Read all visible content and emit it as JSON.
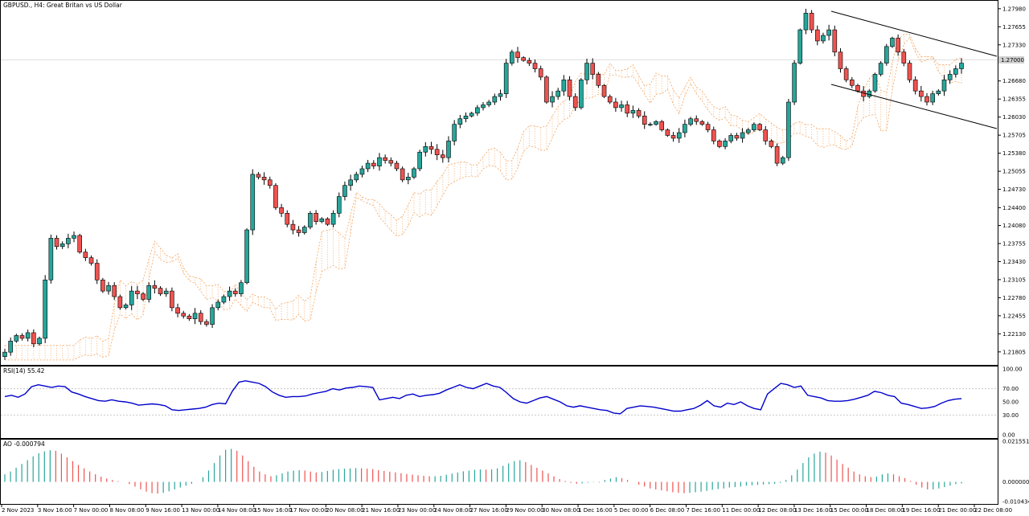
{
  "chart_title": "GBPUSD., H4:  Great Britan vs US Dollar",
  "current_price_label": "1.27000",
  "colors": {
    "bull": "#26a69a",
    "bear": "#ef5350",
    "wick": "#000000",
    "cloud": "#f4a460",
    "cloud_alt": "#c8b4d8",
    "rsi_line": "#0000cc",
    "ao_up": "#26a69a",
    "ao_down": "#ef5350",
    "channel": "#000000",
    "grid": "#d8d8d8"
  },
  "chart_data": [
    {
      "type": "candlestick",
      "panel": "main",
      "ylim": [
        1.216,
        1.2805
      ],
      "y_ticks": [
        "1.27980",
        "1.27655",
        "1.27330",
        "1.26680",
        "1.26355",
        "1.26030",
        "1.25705",
        "1.25380",
        "1.25055",
        "1.24730",
        "1.24400",
        "1.24080",
        "1.23755",
        "1.23430",
        "1.23105",
        "1.22780",
        "1.22455",
        "1.22130",
        "1.21805"
      ],
      "x_ticks": [
        "2 Nov 2023",
        "3 Nov 16:00",
        "7 Nov 00:00",
        "8 Nov 08:00",
        "9 Nov 16:00",
        "13 Nov 00:00",
        "14 Nov 08:00",
        "15 Nov 16:00",
        "17 Nov 00:00",
        "20 Nov 08:00",
        "21 Nov 16:00",
        "23 Nov 00:00",
        "24 Nov 08:00",
        "27 Nov 16:00",
        "29 Nov 00:00",
        "30 Nov 08:00",
        "1 Dec 16:00",
        "5 Dec 00:00",
        "6 Dec 08:00",
        "7 Dec 16:00",
        "11 Dec 00:00",
        "12 Dec 08:00",
        "13 Dec 16:00",
        "15 Dec 00:00",
        "18 Dec 08:00",
        "19 Dec 16:00",
        "21 Dec 00:00",
        "22 Dec 08:00"
      ],
      "close_path": [
        1.218,
        1.22,
        1.221,
        1.2205,
        1.2215,
        1.2195,
        1.2205,
        1.231,
        1.2385,
        1.237,
        1.2375,
        1.2385,
        1.239,
        1.236,
        1.235,
        1.234,
        1.231,
        1.229,
        1.23,
        1.228,
        1.226,
        1.2265,
        1.229,
        1.2285,
        1.2275,
        1.23,
        1.2295,
        1.2285,
        1.229,
        1.226,
        1.225,
        1.2245,
        1.224,
        1.225,
        1.2235,
        1.223,
        1.226,
        1.227,
        1.228,
        1.229,
        1.2285,
        1.2305,
        1.24,
        1.25,
        1.2495,
        1.249,
        1.248,
        1.244,
        1.243,
        1.241,
        1.24,
        1.2395,
        1.2405,
        1.243,
        1.2415,
        1.242,
        1.241,
        1.243,
        1.246,
        1.248,
        1.249,
        1.25,
        1.251,
        1.252,
        1.2515,
        1.253,
        1.2525,
        1.252,
        1.251,
        1.249,
        1.2495,
        1.251,
        1.254,
        1.255,
        1.2545,
        1.2535,
        1.253,
        1.256,
        1.259,
        1.26,
        1.2605,
        1.261,
        1.262,
        1.2625,
        1.263,
        1.264,
        1.2645,
        1.27,
        1.272,
        1.271,
        1.2705,
        1.27,
        1.269,
        1.2675,
        1.263,
        1.264,
        1.265,
        1.267,
        1.264,
        1.262,
        1.267,
        1.27,
        1.268,
        1.266,
        1.264,
        1.263,
        1.262,
        1.2625,
        1.261,
        1.2615,
        1.2605,
        1.259,
        1.259,
        1.2595,
        1.258,
        1.257,
        1.2565,
        1.2575,
        1.259,
        1.26,
        1.2595,
        1.259,
        1.258,
        1.256,
        1.255,
        1.256,
        1.257,
        1.2565,
        1.2575,
        1.258,
        1.259,
        1.258,
        1.256,
        1.255,
        1.252,
        1.253,
        1.263,
        1.27,
        1.276,
        1.279,
        1.276,
        1.274,
        1.275,
        1.276,
        1.272,
        1.269,
        1.267,
        1.266,
        1.265,
        1.264,
        1.265,
        1.268,
        1.27,
        1.273,
        1.2745,
        1.272,
        1.27,
        1.267,
        1.265,
        1.264,
        1.263,
        1.2645,
        1.265,
        1.267,
        1.268,
        1.269,
        1.27
      ]
    },
    {
      "type": "line",
      "panel": "rsi",
      "title": "RSI(14) 55.42",
      "ylim": [
        0,
        100
      ],
      "y_ticks": [
        "100.00",
        "70.00",
        "50.00",
        "30.00",
        "0.00"
      ],
      "levels": [
        70,
        30
      ],
      "values": [
        58,
        60,
        57,
        62,
        73,
        76,
        74,
        72,
        74,
        73,
        65,
        62,
        58,
        55,
        52,
        51,
        53,
        51,
        50,
        48,
        45,
        46,
        47,
        46,
        44,
        38,
        37,
        38,
        39,
        40,
        42,
        46,
        48,
        47,
        66,
        80,
        82,
        80,
        78,
        73,
        65,
        60,
        57,
        58,
        58,
        59,
        62,
        64,
        66,
        70,
        68,
        71,
        72,
        74,
        73,
        72,
        53,
        55,
        57,
        55,
        60,
        62,
        58,
        60,
        61,
        63,
        68,
        72,
        76,
        72,
        70,
        74,
        78,
        74,
        72,
        64,
        55,
        50,
        48,
        52,
        56,
        58,
        54,
        50,
        44,
        42,
        44,
        42,
        40,
        38,
        37,
        33,
        32,
        40,
        42,
        44,
        43,
        42,
        40,
        38,
        36,
        36,
        38,
        40,
        45,
        52,
        44,
        42,
        48,
        46,
        50,
        44,
        40,
        38,
        62,
        70,
        78,
        76,
        72,
        74,
        60,
        58,
        56,
        52,
        51,
        51,
        52,
        54,
        57,
        60,
        66,
        64,
        60,
        58,
        48,
        46,
        43,
        40,
        41,
        43,
        48,
        52,
        54,
        55
      ]
    },
    {
      "type": "bar",
      "panel": "ao",
      "title": "AO -0.000794",
      "ylim": [
        -0.010434,
        0.021551
      ],
      "y_ticks": [
        "0.021551",
        "0.000000",
        "-0.010434"
      ],
      "values": [
        0.004,
        0.0055,
        0.0075,
        0.0095,
        0.0115,
        0.0135,
        0.0152,
        0.0162,
        0.0168,
        0.0165,
        0.015,
        0.013,
        0.011,
        0.009,
        0.0072,
        0.0055,
        0.004,
        0.0028,
        0.0018,
        0.001,
        0.0004,
        0.0,
        -0.0012,
        -0.0025,
        -0.004,
        -0.0052,
        -0.006,
        -0.0062,
        -0.0058,
        -0.005,
        -0.004,
        -0.003,
        -0.002,
        -0.001,
        0.0,
        0.0025,
        0.006,
        0.01,
        0.014,
        0.017,
        0.0175,
        0.0165,
        0.014,
        0.011,
        0.008,
        0.0055,
        0.004,
        0.003,
        0.0035,
        0.0045,
        0.0055,
        0.006,
        0.0062,
        0.006,
        0.0055,
        0.005,
        0.0052,
        0.0058,
        0.0064,
        0.0068,
        0.007,
        0.0072,
        0.0073,
        0.0072,
        0.007,
        0.0068,
        0.0062,
        0.0058,
        0.0054,
        0.005,
        0.0046,
        0.0042,
        0.0038,
        0.0035,
        0.0032,
        0.003,
        0.003,
        0.0032,
        0.0038,
        0.0044,
        0.005,
        0.0056,
        0.006,
        0.0064,
        0.0066,
        0.0065,
        0.0066,
        0.0072,
        0.0085,
        0.0098,
        0.011,
        0.0115,
        0.0105,
        0.009,
        0.0075,
        0.006,
        0.0045,
        0.003,
        0.0015,
        0.0005,
        -0.0005,
        -0.001,
        -0.0008,
        -0.0004,
        -0.0002,
        -0.0003,
        0.001,
        0.0018,
        0.0025,
        0.002,
        0.001,
        0.0,
        -0.0015,
        -0.0025,
        -0.0035,
        -0.004,
        -0.0045,
        -0.005,
        -0.0055,
        -0.0058,
        -0.006,
        -0.0058,
        -0.0055,
        -0.0052,
        -0.0048,
        -0.0042,
        -0.0038,
        -0.0035,
        -0.003,
        -0.0028,
        -0.0025,
        -0.002,
        -0.0018,
        -0.0016,
        -0.0014,
        -0.0012,
        -0.001,
        -0.0005,
        0.001,
        0.0035,
        0.0065,
        0.01,
        0.013,
        0.015,
        0.016,
        0.0155,
        0.014,
        0.0118,
        0.0095,
        0.0075,
        0.0055,
        0.004,
        0.003,
        0.0025,
        0.0028,
        0.004,
        0.0045,
        0.004,
        0.003,
        0.002,
        0.0005,
        -0.0015,
        -0.003,
        -0.004,
        -0.004,
        -0.0035,
        -0.0028,
        -0.002,
        -0.0012,
        -0.0008
      ]
    }
  ]
}
